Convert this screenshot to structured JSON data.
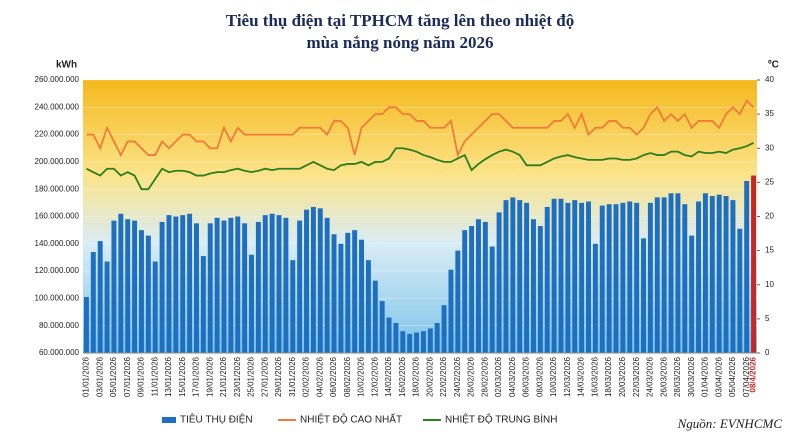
{
  "chart_data": {
    "type": "bar-line",
    "title": [
      "Tiêu thụ điện tại TPHCM tăng lên theo nhiệt độ",
      "mùa nắng nóng năm 2026"
    ],
    "y_label": "kWh",
    "y2_label": "ºC",
    "source": "Nguồn: EVNHCMC",
    "categories": [
      "01/01/2026",
      null,
      "03/01/2026",
      null,
      "05/01/2026",
      null,
      "07/01/2026",
      null,
      "09/01/2026",
      null,
      "11/01/2026",
      null,
      "13/01/2026",
      null,
      "15/01/2026",
      null,
      "17/01/2026",
      null,
      "19/01/2026",
      null,
      "21/01/2026",
      null,
      "23/01/2026",
      null,
      "25/01/2026",
      null,
      "27/01/2026",
      null,
      "29/01/2026",
      null,
      "31/01/2026",
      null,
      "02/02/2026",
      null,
      "04/02/2026",
      null,
      "06/02/2026",
      null,
      "08/02/2026",
      null,
      "10/02/2026",
      null,
      "12/02/2026",
      null,
      "14/02/2026",
      null,
      "16/02/2026",
      null,
      "18/02/2026",
      null,
      "20/02/2026",
      null,
      "22/02/2026",
      null,
      "24/02/2026",
      null,
      "26/02/2026",
      null,
      "28/02/2026",
      null,
      "02/03/2026",
      null,
      "04/03/2026",
      null,
      "06/03/2026",
      null,
      "08/03/2026",
      null,
      "10/03/2026",
      null,
      "12/03/2026",
      null,
      "14/03/2026",
      null,
      "16/03/2026",
      null,
      "18/03/2026",
      null,
      "20/03/2026",
      null,
      "22/03/2026",
      null,
      "24/03/2026",
      null,
      "26/03/2026",
      null,
      "28/03/2026",
      null,
      "30/03/2026",
      null,
      "01/04/2026",
      null,
      "03/04/2026",
      null,
      "05/04/2026",
      null,
      "07/04/2026",
      "08/4/2026"
    ],
    "highlight": {
      "index": 97,
      "color": "#c62828"
    },
    "series": [
      {
        "name": "TIÊU THỤ ĐIỆN",
        "kind": "bar",
        "color": "#1f6fc0",
        "values": [
          101000000,
          134000000,
          142000000,
          127000000,
          157000000,
          162000000,
          158000000,
          157000000,
          150000000,
          146000000,
          127000000,
          156000000,
          161000000,
          160000000,
          161000000,
          162000000,
          155000000,
          131000000,
          155000000,
          159000000,
          157000000,
          159000000,
          160000000,
          155000000,
          132000000,
          156000000,
          161000000,
          162000000,
          161000000,
          159000000,
          128000000,
          157000000,
          165000000,
          167000000,
          166000000,
          159000000,
          147000000,
          140000000,
          148000000,
          150000000,
          143000000,
          128000000,
          113000000,
          98000000,
          86000000,
          82000000,
          76000000,
          74000000,
          75000000,
          76000000,
          78000000,
          82000000,
          95000000,
          121000000,
          135000000,
          150000000,
          153000000,
          158000000,
          156000000,
          138000000,
          163000000,
          172000000,
          174000000,
          172000000,
          170000000,
          158000000,
          153000000,
          167000000,
          173000000,
          173000000,
          170000000,
          172000000,
          170000000,
          171000000,
          140000000,
          168000000,
          169000000,
          169000000,
          170000000,
          171000000,
          170000000,
          144000000,
          170000000,
          174000000,
          174000000,
          177000000,
          177000000,
          169000000,
          146000000,
          171000000,
          177000000,
          175000000,
          176000000,
          175000000,
          172000000,
          151000000,
          186000000,
          190000000
        ]
      },
      {
        "name": "NHIỆT ĐỘ CAO NHẤT",
        "kind": "line",
        "axis": "y2",
        "color": "#f07b3a",
        "values": [
          32,
          32,
          30,
          33,
          31,
          29,
          31,
          31,
          30,
          29,
          29,
          31,
          30,
          31,
          32,
          32,
          31,
          31,
          30,
          30,
          33,
          31,
          33,
          32,
          32,
          32,
          32,
          32,
          32,
          32,
          32,
          33,
          33,
          33,
          33,
          32,
          34,
          34,
          33,
          29,
          33,
          34,
          35,
          35,
          36,
          36,
          35,
          35,
          34,
          34,
          33,
          33,
          33,
          34,
          29,
          31,
          32,
          33,
          34,
          35,
          35,
          34,
          33,
          33,
          33,
          33,
          33,
          33,
          34,
          34,
          35,
          33,
          35,
          32,
          33,
          33,
          34,
          34,
          33,
          33,
          32,
          33,
          35,
          36,
          34,
          35,
          34,
          35,
          33,
          34,
          34,
          34,
          33,
          35,
          36,
          35,
          37,
          36
        ]
      },
      {
        "name": "NHIỆT ĐỘ TRUNG BÌNH",
        "kind": "line",
        "axis": "y2",
        "color": "#2e7d1f",
        "values": [
          27,
          26.5,
          26,
          27,
          27,
          26,
          26.5,
          26,
          24,
          24,
          25.5,
          27,
          26.5,
          26.7,
          26.7,
          26.5,
          26,
          26,
          26.3,
          26.5,
          26.5,
          26.8,
          27,
          26.7,
          26.5,
          26.7,
          27,
          26.8,
          27,
          27,
          27,
          27,
          27.5,
          28,
          27.5,
          27,
          26.8,
          27.5,
          27.7,
          27.7,
          28,
          27.5,
          28,
          28,
          28.5,
          30,
          30,
          29.8,
          29.5,
          29,
          28.7,
          28.3,
          28,
          28,
          28.5,
          29,
          26.8,
          27.7,
          28.4,
          29,
          29.5,
          29.8,
          29.5,
          29,
          27.5,
          27.5,
          27.5,
          28,
          28.5,
          28.8,
          29,
          28.7,
          28.5,
          28.3,
          28.3,
          28.3,
          28.5,
          28.5,
          28.3,
          28.3,
          28.5,
          29,
          29.3,
          29,
          29,
          29.5,
          29.5,
          29,
          28.8,
          29.5,
          29.3,
          29.3,
          29.5,
          29.3,
          29.8,
          30,
          30.3,
          30.8
        ]
      }
    ],
    "ylim": [
      60000000,
      260000000
    ],
    "yticks": [
      {
        "value": 60000000,
        "label": "60.000.000"
      },
      {
        "value": 80000000,
        "label": "80.000.000"
      },
      {
        "value": 100000000,
        "label": "100.000.000"
      },
      {
        "value": 120000000,
        "label": "120.000.000"
      },
      {
        "value": 140000000,
        "label": "140.000.000"
      },
      {
        "value": 160000000,
        "label": "160.000.000"
      },
      {
        "value": 180000000,
        "label": "180.000.000"
      },
      {
        "value": 200000000,
        "label": "200.000.000"
      },
      {
        "value": 220000000,
        "label": "220.000.000"
      },
      {
        "value": 240000000,
        "label": "240.000.000"
      },
      {
        "value": 260000000,
        "label": "260.000.000"
      }
    ],
    "y2lim": [
      0,
      40
    ],
    "y2ticks": [
      0,
      5,
      10,
      15,
      20,
      25,
      30,
      35,
      40
    ],
    "grid": true
  }
}
